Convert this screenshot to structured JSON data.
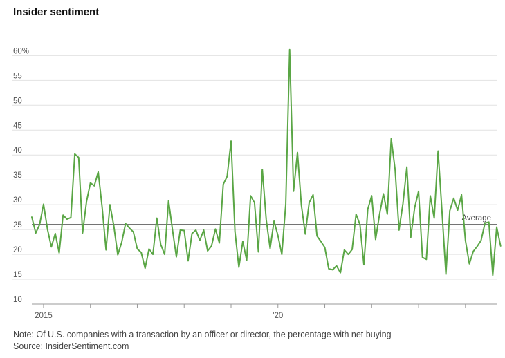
{
  "chart_data": {
    "type": "line",
    "title": "Insider sentiment",
    "subtitle": "",
    "xlabel": "",
    "ylabel": "",
    "y_unit": "%",
    "ylim": [
      10,
      62
    ],
    "yticks": [
      {
        "value": 60,
        "label": "60%"
      },
      {
        "value": 55,
        "label": "55"
      },
      {
        "value": 50,
        "label": "50"
      },
      {
        "value": 45,
        "label": "45"
      },
      {
        "value": 40,
        "label": "40"
      },
      {
        "value": 35,
        "label": "35"
      },
      {
        "value": 30,
        "label": "30"
      },
      {
        "value": 25,
        "label": "25"
      },
      {
        "value": 20,
        "label": "20"
      },
      {
        "value": 15,
        "label": "15"
      },
      {
        "value": 10,
        "label": "10"
      }
    ],
    "xlim": [
      "2014-10",
      "2024-09"
    ],
    "xticks": [
      {
        "value": "2015-01",
        "label": "2015"
      },
      {
        "value": "2020-01",
        "label": "'20"
      }
    ],
    "year_marks": [
      "2015-01",
      "2016-01",
      "2017-01",
      "2018-01",
      "2019-01",
      "2020-01",
      "2021-01",
      "2022-01",
      "2023-01",
      "2024-01"
    ],
    "grid": true,
    "line_color": "#5aa645",
    "average": {
      "value": 26,
      "label": "Average"
    },
    "series": [
      {
        "name": "",
        "start": "2014-10",
        "frequency": "monthly",
        "values": [
          27.5,
          24.3,
          26.0,
          30.1,
          25.1,
          21.5,
          24.2,
          20.3,
          27.9,
          27.1,
          27.4,
          40.2,
          39.5,
          24.3,
          30.6,
          34.4,
          33.8,
          36.6,
          29.5,
          20.9,
          30.0,
          25.7,
          19.9,
          22.4,
          26.2,
          25.3,
          24.5,
          21.1,
          20.4,
          17.2,
          21.1,
          20.0,
          27.3,
          22.0,
          20.0,
          30.8,
          25.0,
          19.5,
          24.9,
          24.8,
          18.7,
          24.2,
          24.9,
          22.8,
          24.9,
          20.7,
          21.7,
          25.1,
          22.3,
          34.1,
          35.7,
          42.8,
          24.6,
          17.4,
          22.6,
          18.8,
          31.8,
          30.4,
          20.5,
          37.1,
          27.0,
          21.2,
          26.7,
          23.8,
          20.0,
          30.1,
          61.2,
          32.7,
          40.5,
          29.9,
          24.1,
          30.4,
          32.0,
          23.7,
          22.6,
          21.4,
          17.1,
          16.9,
          17.7,
          16.3,
          20.9,
          20.0,
          21.0,
          28.1,
          26.0,
          17.9,
          29.1,
          31.8,
          23.0,
          28.0,
          32.2,
          28.1,
          43.3,
          37.0,
          24.9,
          30.2,
          37.6,
          23.4,
          29.4,
          32.7,
          19.4,
          19.0,
          31.8,
          27.3,
          40.8,
          28.6,
          16.0,
          28.8,
          31.3,
          28.9,
          32.0,
          22.8,
          18.1,
          20.6,
          21.6,
          22.8,
          26.3,
          26.5,
          15.8,
          25.5,
          21.7
        ]
      }
    ],
    "note": "Note: Of U.S. companies with a transaction by an officer or director, the percentage with net buying",
    "source": "Source: InsiderSentiment.com"
  }
}
